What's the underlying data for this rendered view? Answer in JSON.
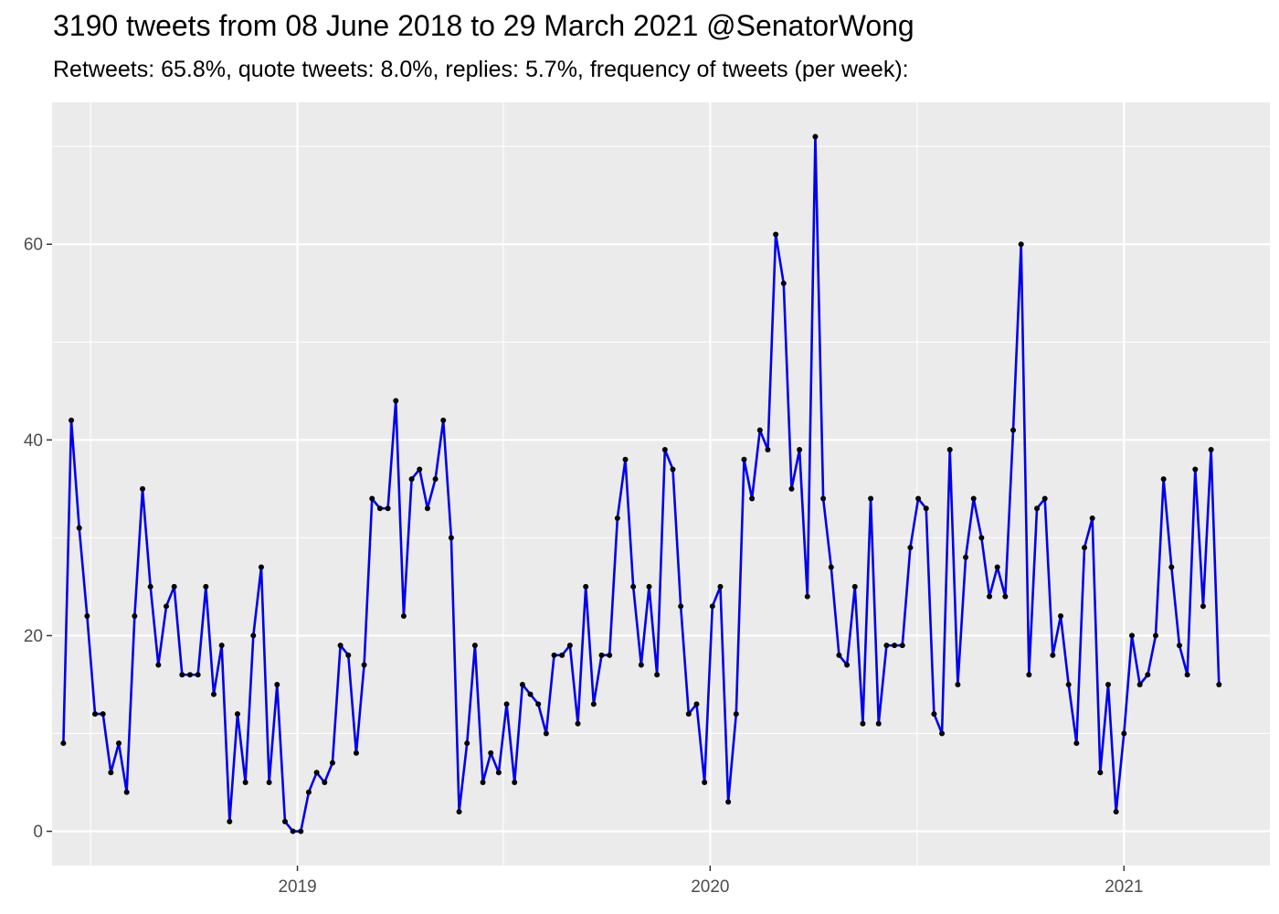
{
  "chart_data": {
    "type": "line",
    "title": "3190 tweets from 08 June 2018 to 29 March 2021 @SenatorWong",
    "subtitle": "Retweets: 65.8%, quote tweets: 8.0%, replies: 5.7%, frequency of tweets (per week):",
    "xlabel": "",
    "ylabel": "",
    "x_axis": {
      "type": "date",
      "range": [
        "2018-05-29",
        "2021-05-10"
      ],
      "major_ticks": [
        "2019-01-01",
        "2020-01-01",
        "2021-01-01"
      ],
      "major_tick_labels": [
        "2019",
        "2020",
        "2021"
      ],
      "minor_gridlines": [
        "2018-07-02",
        "2019-07-02",
        "2020-07-02"
      ]
    },
    "y_axis": {
      "range": [
        -3.5,
        74.5
      ],
      "major_ticks": [
        0,
        20,
        40,
        60
      ],
      "major_tick_labels": [
        "0",
        "20",
        "40",
        "60"
      ],
      "minor_gridlines": [
        10,
        30,
        50,
        70
      ]
    },
    "grid": true,
    "legend": "none",
    "series": [
      {
        "line_color": "#0000EE",
        "point_color": "#000000",
        "x": [
          "2018-06-08",
          "2018-06-15",
          "2018-06-22",
          "2018-06-29",
          "2018-07-06",
          "2018-07-13",
          "2018-07-20",
          "2018-07-27",
          "2018-08-03",
          "2018-08-10",
          "2018-08-17",
          "2018-08-24",
          "2018-08-31",
          "2018-09-07",
          "2018-09-14",
          "2018-09-21",
          "2018-09-28",
          "2018-10-05",
          "2018-10-12",
          "2018-10-19",
          "2018-10-26",
          "2018-11-02",
          "2018-11-09",
          "2018-11-16",
          "2018-11-23",
          "2018-11-30",
          "2018-12-07",
          "2018-12-14",
          "2018-12-21",
          "2018-12-28",
          "2019-01-04",
          "2019-01-11",
          "2019-01-18",
          "2019-01-25",
          "2019-02-01",
          "2019-02-08",
          "2019-02-15",
          "2019-02-22",
          "2019-03-01",
          "2019-03-08",
          "2019-03-15",
          "2019-03-22",
          "2019-03-29",
          "2019-04-05",
          "2019-04-12",
          "2019-04-19",
          "2019-04-26",
          "2019-05-03",
          "2019-05-10",
          "2019-05-17",
          "2019-05-24",
          "2019-05-31",
          "2019-06-07",
          "2019-06-14",
          "2019-06-21",
          "2019-06-28",
          "2019-07-05",
          "2019-07-12",
          "2019-07-19",
          "2019-07-26",
          "2019-08-02",
          "2019-08-09",
          "2019-08-16",
          "2019-08-23",
          "2019-08-30",
          "2019-09-06",
          "2019-09-13",
          "2019-09-20",
          "2019-09-27",
          "2019-10-04",
          "2019-10-11",
          "2019-10-18",
          "2019-10-25",
          "2019-11-01",
          "2019-11-08",
          "2019-11-15",
          "2019-11-22",
          "2019-11-29",
          "2019-12-06",
          "2019-12-13",
          "2019-12-20",
          "2019-12-27",
          "2020-01-03",
          "2020-01-10",
          "2020-01-17",
          "2020-01-24",
          "2020-01-31",
          "2020-02-07",
          "2020-02-14",
          "2020-02-21",
          "2020-02-28",
          "2020-03-06",
          "2020-03-13",
          "2020-03-20",
          "2020-03-27",
          "2020-04-03",
          "2020-04-10",
          "2020-04-17",
          "2020-04-24",
          "2020-05-01",
          "2020-05-08",
          "2020-05-15",
          "2020-05-22",
          "2020-05-29",
          "2020-06-05",
          "2020-06-12",
          "2020-06-19",
          "2020-06-26",
          "2020-07-03",
          "2020-07-10",
          "2020-07-17",
          "2020-07-24",
          "2020-07-31",
          "2020-08-07",
          "2020-08-14",
          "2020-08-21",
          "2020-08-28",
          "2020-09-04",
          "2020-09-11",
          "2020-09-18",
          "2020-09-25",
          "2020-10-02",
          "2020-10-09",
          "2020-10-16",
          "2020-10-23",
          "2020-10-30",
          "2020-11-06",
          "2020-11-13",
          "2020-11-20",
          "2020-11-27",
          "2020-12-04",
          "2020-12-11",
          "2020-12-18",
          "2020-12-25",
          "2021-01-01",
          "2021-01-08",
          "2021-01-15",
          "2021-01-22",
          "2021-01-29",
          "2021-02-05",
          "2021-02-12",
          "2021-02-19",
          "2021-02-26",
          "2021-03-05",
          "2021-03-12",
          "2021-03-19",
          "2021-03-26"
        ],
        "y": [
          9,
          42,
          31,
          22,
          12,
          12,
          6,
          9,
          4,
          22,
          35,
          25,
          17,
          23,
          25,
          16,
          16,
          16,
          25,
          14,
          19,
          1,
          12,
          5,
          20,
          27,
          5,
          15,
          1,
          0,
          0,
          4,
          6,
          5,
          7,
          19,
          18,
          8,
          17,
          34,
          33,
          33,
          44,
          22,
          36,
          37,
          33,
          36,
          42,
          30,
          2,
          9,
          19,
          5,
          8,
          6,
          13,
          5,
          15,
          14,
          13,
          10,
          18,
          18,
          19,
          11,
          25,
          13,
          18,
          18,
          32,
          38,
          25,
          17,
          25,
          16,
          39,
          37,
          23,
          12,
          13,
          5,
          23,
          25,
          3,
          12,
          38,
          34,
          41,
          39,
          61,
          56,
          35,
          39,
          24,
          71,
          34,
          27,
          18,
          17,
          25,
          11,
          34,
          11,
          19,
          19,
          19,
          29,
          34,
          33,
          12,
          10,
          39,
          15,
          28,
          34,
          30,
          24,
          27,
          24,
          41,
          60,
          16,
          33,
          34,
          18,
          22,
          15,
          9,
          29,
          32,
          6,
          15,
          2,
          10,
          20,
          15,
          16,
          20,
          36,
          27,
          19,
          16,
          37,
          23,
          39,
          15
        ]
      }
    ]
  }
}
